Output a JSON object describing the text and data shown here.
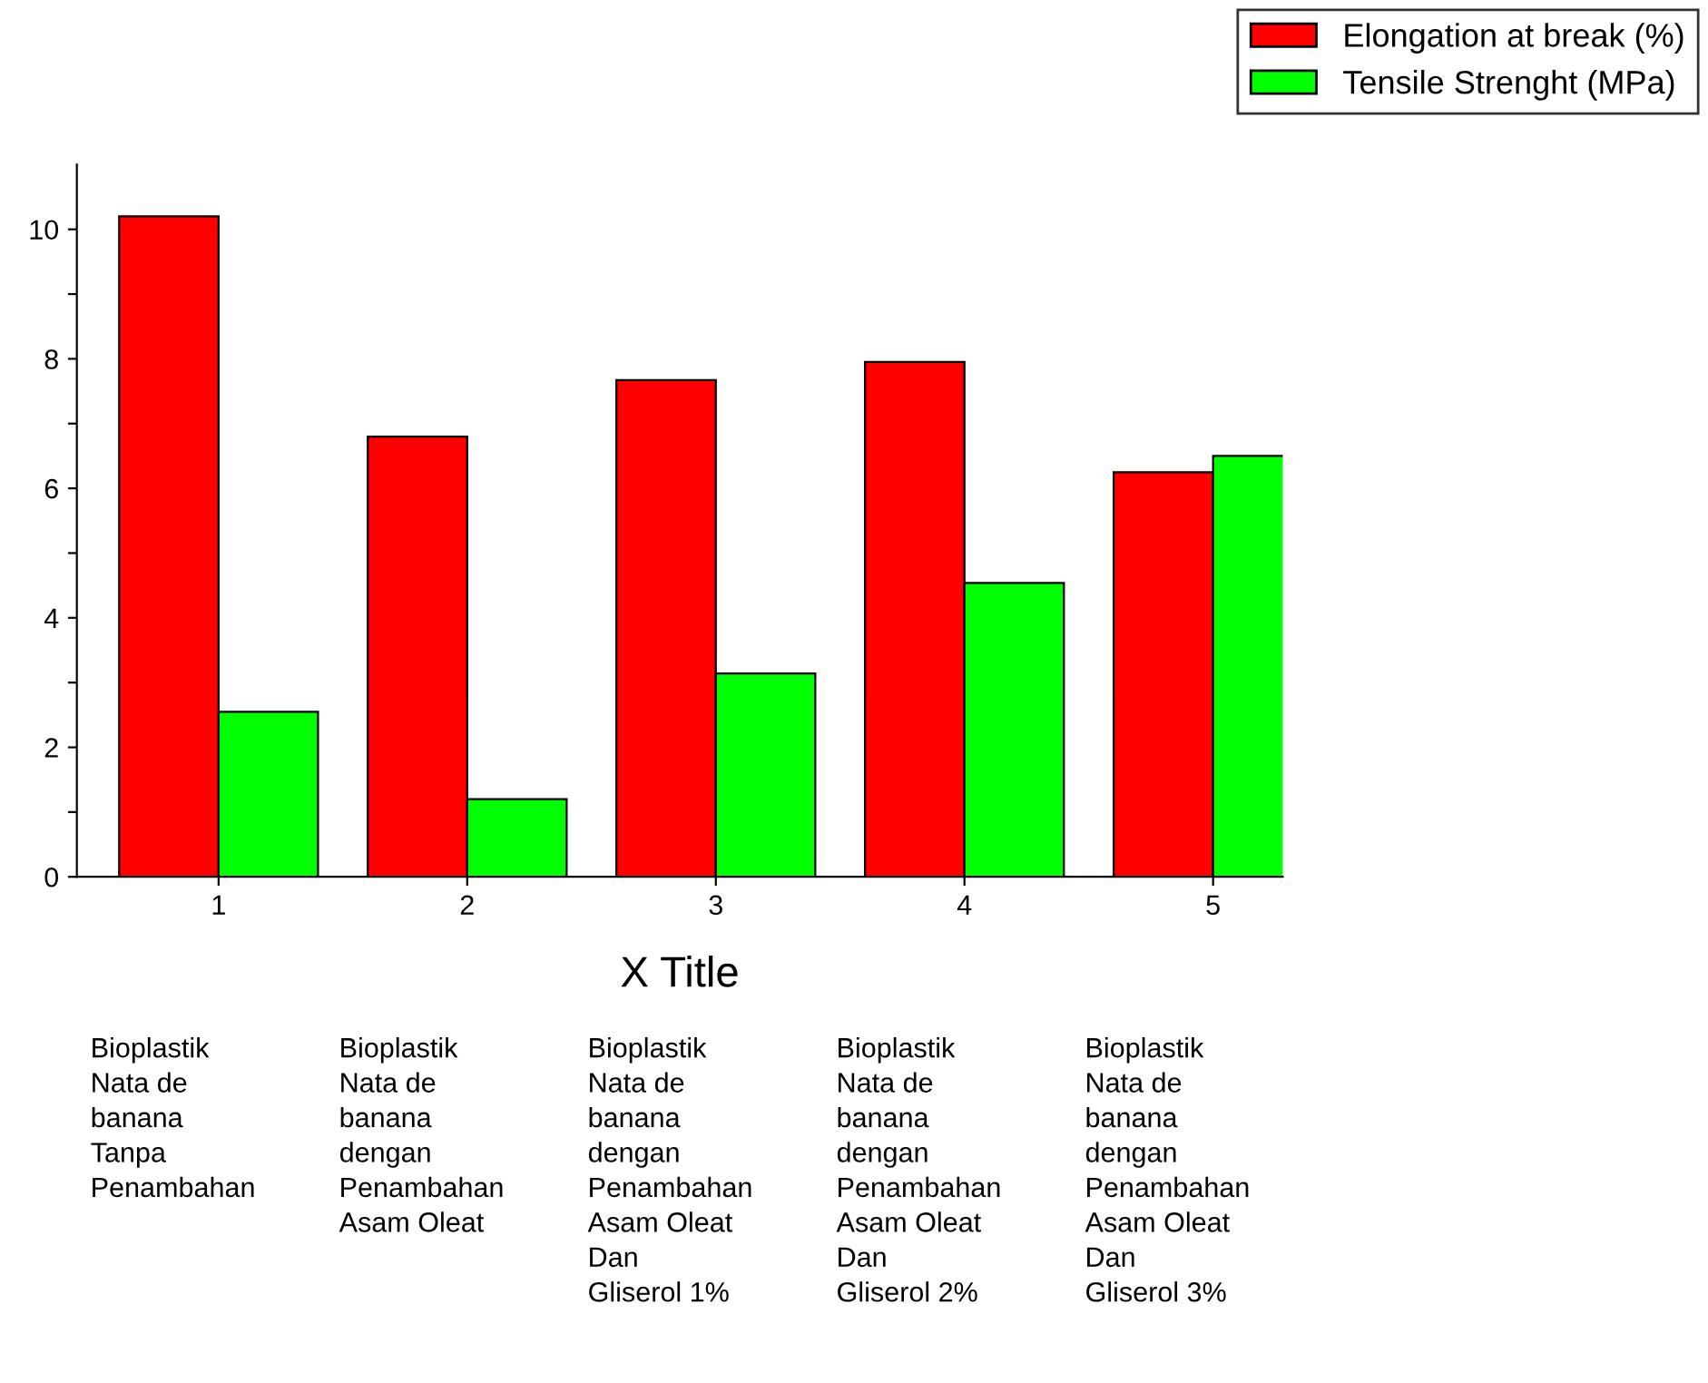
{
  "chart_data": {
    "type": "bar",
    "xlabel": "X Title",
    "categories": [
      "1",
      "2",
      "3",
      "4",
      "5"
    ],
    "series": [
      {
        "name": "Elongation at break (%)",
        "color": "#ff0000",
        "values": [
          10.2,
          6.8,
          7.67,
          7.95,
          6.25
        ]
      },
      {
        "name": "Tensile Strenght (MPa)",
        "color": "#00ff00",
        "values": [
          2.55,
          1.2,
          3.14,
          4.54,
          6.5
        ]
      }
    ],
    "ylim": [
      0,
      11
    ],
    "yticks": [
      0,
      {
        "value": 1,
        "label": null
      },
      2,
      {
        "value": 3,
        "label": null
      },
      4,
      {
        "value": 5,
        "label": null
      },
      6,
      {
        "value": 7,
        "label": null
      },
      8,
      {
        "value": 9,
        "label": null
      },
      10
    ],
    "grid": false,
    "legend": "top right",
    "annotations": [
      "Bioplastik\nNata de\nbanana\nTanpa\nPenambahan",
      "Bioplastik\nNata de\nbanana\ndengan\nPenambahan\nAsam Oleat",
      "Bioplastik\nNata de\nbanana\ndengan\nPenambahan\nAsam Oleat\nDan\nGliserol 1%",
      "Bioplastik\nNata de\nbanana\ndengan\nPenambahan\nAsam Oleat\nDan\nGliserol 2%",
      "Bioplastik\nNata de\nbanana\ndengan\nPenambahan\nAsam Oleat\nDan\nGliserol 3%"
    ]
  }
}
